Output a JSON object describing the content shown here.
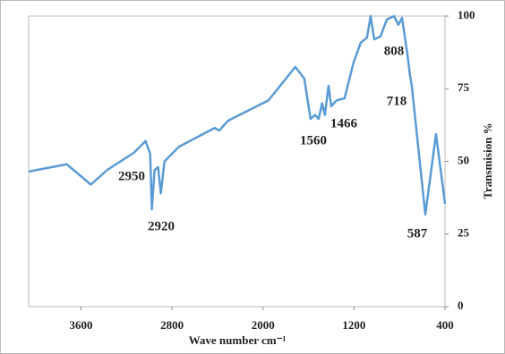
{
  "chart_data": {
    "type": "line",
    "x_label": "Wave number cm⁻¹",
    "y_label": "Transmision %",
    "x": [
      4060,
      3725,
      3513,
      3371,
      3134,
      3032,
      2992,
      2977,
      2953,
      2922,
      2898,
      2866,
      2740,
      2425,
      2385,
      2307,
      1952,
      1716,
      1637,
      1582,
      1543,
      1511,
      1480,
      1456,
      1424,
      1400,
      1353,
      1283,
      1204,
      1141,
      1086,
      1054,
      1022,
      967,
      912,
      849,
      810,
      778,
      731,
      707,
      692,
      573,
      479,
      400
    ],
    "series": [
      {
        "color": "#5b9bd5",
        "values": [
          46.5,
          49,
          42,
          47,
          53,
          57,
          52.6,
          33.5,
          47,
          48,
          39,
          50,
          55,
          61.5,
          60.6,
          64,
          71,
          82.5,
          78.5,
          64.6,
          66,
          64.6,
          70,
          66,
          76,
          69,
          71,
          71.7,
          84,
          90.8,
          92.6,
          100,
          92,
          93,
          98.8,
          100,
          97,
          99.4,
          87,
          79.4,
          76,
          31.7,
          59.4,
          35.4
        ]
      }
    ],
    "xlim": [
      4060,
      400
    ],
    "xticks": [
      3600,
      2800,
      2000,
      1200,
      400
    ],
    "ylim": [
      0,
      100
    ],
    "yticks": [
      0,
      25,
      50,
      75,
      100
    ],
    "annotations": [
      "2950",
      "2920",
      "1560",
      "1466",
      "808",
      "718",
      "587"
    ]
  }
}
